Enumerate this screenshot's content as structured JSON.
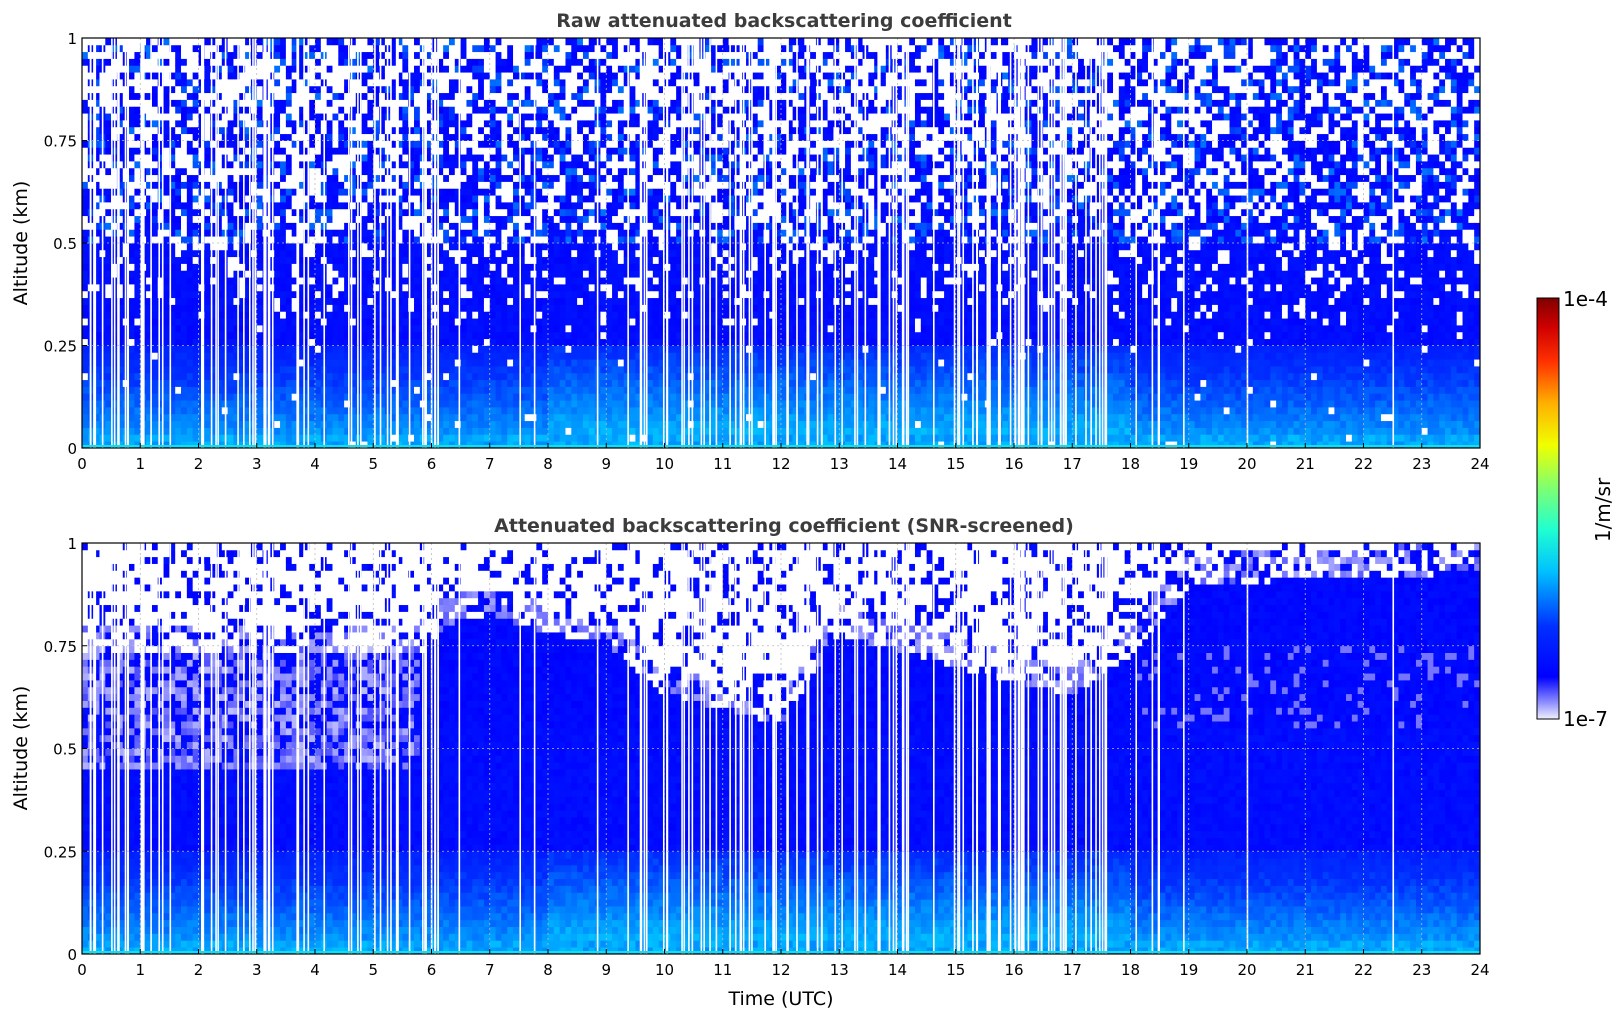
{
  "colors": {
    "background": "#ffffff",
    "title": "#3c3c3c",
    "grid": "#bbbbbb",
    "colormap_low": "#e8e8ff",
    "colormap_mid": "#0a22f0",
    "colormap_high": "#800000"
  },
  "chart_data": [
    {
      "type": "heatmap",
      "title": "Raw attenuated backscattering coefficient",
      "xlabel": "",
      "ylabel": "Altitude (km)",
      "xlim": [
        0,
        24
      ],
      "ylim": [
        0,
        1
      ],
      "x_ticks": [
        "0",
        "1",
        "2",
        "3",
        "4",
        "5",
        "6",
        "7",
        "8",
        "9",
        "10",
        "11",
        "12",
        "13",
        "14",
        "15",
        "16",
        "17",
        "18",
        "19",
        "20",
        "21",
        "22",
        "23",
        "24"
      ],
      "y_ticks": [
        "0",
        "0.25",
        "0.5",
        "0.75",
        "1"
      ],
      "y_tick_values": [
        0,
        0.25,
        0.5,
        0.75,
        1
      ],
      "grid": true,
      "colorscale": "jet, log10 from 1e-7 to 1e-4 (white below range)",
      "description_levels": [
        {
          "altitude_km": [
            0,
            0.05
          ],
          "log10_beta": -6.2,
          "note": "surface layer, light blue"
        },
        {
          "altitude_km": [
            0.05,
            0.35
          ],
          "log10_beta": -6.5,
          "note": "boundary layer, blue"
        },
        {
          "altitude_km": [
            0.35,
            0.55
          ],
          "log10_beta": -6.7,
          "note": "upper boundary layer, blue"
        },
        {
          "altitude_km": [
            0.55,
            1.0
          ],
          "log10_beta": -7.0,
          "note": "noisy, sparse blue/white"
        }
      ]
    },
    {
      "type": "heatmap",
      "title": "Attenuated backscattering coefficient (SNR-screened)",
      "xlabel": "Time (UTC)",
      "ylabel": "Altitude (km)",
      "xlim": [
        0,
        24
      ],
      "ylim": [
        0,
        1
      ],
      "x_ticks": [
        "0",
        "1",
        "2",
        "3",
        "4",
        "5",
        "6",
        "7",
        "8",
        "9",
        "10",
        "11",
        "12",
        "13",
        "14",
        "15",
        "16",
        "17",
        "18",
        "19",
        "20",
        "21",
        "22",
        "23",
        "24"
      ],
      "y_ticks": [
        "0",
        "0.25",
        "0.5",
        "0.75",
        "1"
      ],
      "y_tick_values": [
        0,
        0.25,
        0.5,
        0.75,
        1
      ],
      "grid": true,
      "colorscale": "jet, log10 from 1e-7 to 1e-4 (white = screened out)",
      "boundary_layer_top_km": [
        {
          "t": 0,
          "h": 0.75
        },
        {
          "t": 5.8,
          "h": 0.75
        },
        {
          "t": 6.2,
          "h": 0.82
        },
        {
          "t": 7,
          "h": 0.85
        },
        {
          "t": 8,
          "h": 0.8
        },
        {
          "t": 9,
          "h": 0.78
        },
        {
          "t": 10,
          "h": 0.65
        },
        {
          "t": 11,
          "h": 0.62
        },
        {
          "t": 12,
          "h": 0.58
        },
        {
          "t": 13,
          "h": 0.8
        },
        {
          "t": 15,
          "h": 0.72
        },
        {
          "t": 17,
          "h": 0.65
        },
        {
          "t": 18,
          "h": 0.75
        },
        {
          "t": 19,
          "h": 0.92
        },
        {
          "t": 24,
          "h": 0.95
        }
      ]
    }
  ],
  "colorbar": {
    "label": "1/m/sr",
    "max_label": "1e-4",
    "min_label": "1e-7",
    "range_log10": [
      -7,
      -4
    ]
  }
}
